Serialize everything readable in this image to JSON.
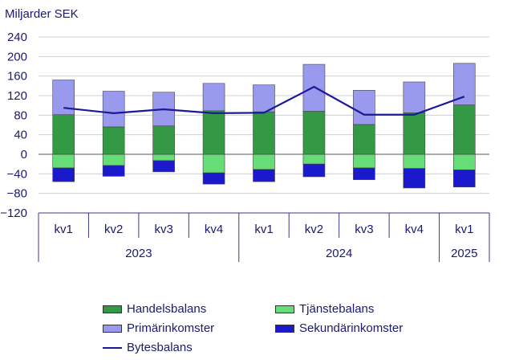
{
  "chart_data": {
    "type": "bar",
    "stacked": true,
    "ylabel": "Miljarder SEK",
    "ylim": [
      -120,
      240
    ],
    "yticks": [
      240,
      200,
      160,
      120,
      80,
      40,
      0,
      -40,
      -80,
      -120
    ],
    "grid": true,
    "categories": [
      "kv1",
      "kv2",
      "kv3",
      "kv4",
      "kv1",
      "kv2",
      "kv3",
      "kv4",
      "kv1"
    ],
    "year_groups": [
      {
        "label": "2023",
        "start": 0,
        "end": 3
      },
      {
        "label": "2024",
        "start": 4,
        "end": 7
      },
      {
        "label": "2025",
        "start": 8,
        "end": 8
      }
    ],
    "series": [
      {
        "name": "Handelsbalans",
        "type": "bar",
        "color": "#339944",
        "values": [
          81,
          56,
          58,
          89,
          87,
          88,
          61,
          85,
          101
        ]
      },
      {
        "name": "Primärinkomster",
        "type": "bar",
        "color": "#9999ee",
        "values": [
          71,
          73,
          69,
          56,
          55,
          96,
          70,
          63,
          85
        ]
      },
      {
        "name": "Tjänstebalans",
        "type": "bar",
        "color": "#66dd77",
        "values": [
          -28,
          -23,
          -13,
          -38,
          -31,
          -20,
          -28,
          -29,
          -32
        ]
      },
      {
        "name": "Sekundärinkomster",
        "type": "bar",
        "color": "#1a1acc",
        "values": [
          -28,
          -22,
          -23,
          -23,
          -25,
          -26,
          -24,
          -40,
          -35
        ]
      },
      {
        "name": "Bytesbalans",
        "type": "line",
        "color": "#1a1a99",
        "values": [
          95,
          84,
          92,
          84,
          85,
          138,
          81,
          81,
          118
        ]
      }
    ],
    "legend_placement": "bottom"
  },
  "legend": {
    "handel": "Handelsbalans",
    "tjanst": "Tjänstebalans",
    "primar": "Primärinkomster",
    "sekundar": "Sekundärinkomster",
    "bytes": "Bytesbalans"
  }
}
